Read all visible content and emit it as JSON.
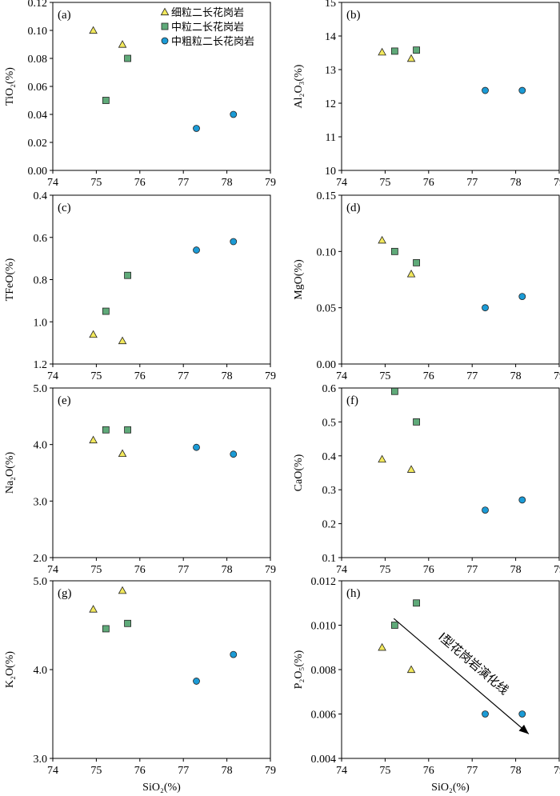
{
  "chart_data": {
    "type": "scatter",
    "xlabel": "SiO₂(%)",
    "xlim": [
      74,
      79
    ],
    "xticks": [
      "74",
      "75",
      "76",
      "77",
      "78",
      "79"
    ],
    "legend": {
      "placement": "top-right of panel (a)",
      "entries": [
        "细粒二长花岗岩",
        "中粒二长花岗岩",
        "中粗粒二长花岗岩"
      ]
    },
    "series_styles": [
      {
        "marker": "triangle",
        "color": "#f2e85c"
      },
      {
        "marker": "square",
        "color": "#5faa79"
      },
      {
        "marker": "circle",
        "color": "#1b9bd6"
      }
    ],
    "panels": [
      {
        "tag": "(a)",
        "ylabel": "TiO₂(%)",
        "ylim": [
          0,
          0.12
        ],
        "reversed": false,
        "yticks": [
          "0.00",
          "0.02",
          "0.04",
          "0.06",
          "0.08",
          "0.10",
          "0.12"
        ],
        "series": [
          {
            "x": [
              74.93,
              75.6
            ],
            "y": [
              0.1,
              0.09
            ]
          },
          {
            "x": [
              75.22,
              75.72
            ],
            "y": [
              0.05,
              0.08
            ]
          },
          {
            "x": [
              77.3,
              78.15
            ],
            "y": [
              0.03,
              0.04
            ]
          }
        ]
      },
      {
        "tag": "(b)",
        "ylabel": "Al₂O₃(%)",
        "ylim": [
          10,
          15
        ],
        "reversed": false,
        "yticks": [
          "10",
          "11",
          "12",
          "13",
          "14",
          "15"
        ],
        "series": [
          {
            "x": [
              74.93,
              75.6
            ],
            "y": [
              13.52,
              13.33
            ]
          },
          {
            "x": [
              75.22,
              75.72
            ],
            "y": [
              13.55,
              13.58
            ]
          },
          {
            "x": [
              77.3,
              78.15
            ],
            "y": [
              12.38,
              12.38
            ]
          }
        ]
      },
      {
        "tag": "(c)",
        "ylabel": "TFeO(%)",
        "ylim": [
          1.2,
          0.4
        ],
        "reversed": true,
        "yticks": [
          "0.4",
          "0.6",
          "0.8",
          "1.0",
          "1.2"
        ],
        "series": [
          {
            "x": [
              74.93,
              75.6
            ],
            "y": [
              1.06,
              1.09
            ]
          },
          {
            "x": [
              75.22,
              75.72
            ],
            "y": [
              0.95,
              0.78
            ]
          },
          {
            "x": [
              77.3,
              78.15
            ],
            "y": [
              0.66,
              0.62
            ]
          }
        ]
      },
      {
        "tag": "(d)",
        "ylabel": "MgO(%)",
        "ylim": [
          0,
          0.15
        ],
        "reversed": false,
        "yticks": [
          "0.00",
          "0.05",
          "0.10",
          "0.15"
        ],
        "series": [
          {
            "x": [
              74.93,
              75.6
            ],
            "y": [
              0.11,
              0.08
            ]
          },
          {
            "x": [
              75.22,
              75.72
            ],
            "y": [
              0.1,
              0.09
            ]
          },
          {
            "x": [
              77.3,
              78.15
            ],
            "y": [
              0.05,
              0.06
            ]
          }
        ]
      },
      {
        "tag": "(e)",
        "ylabel": "Na₂O(%)",
        "ylim": [
          2.0,
          5.0
        ],
        "reversed": false,
        "yticks": [
          "2.0",
          "3.0",
          "4.0",
          "5.0"
        ],
        "series": [
          {
            "x": [
              74.93,
              75.6
            ],
            "y": [
              4.08,
              3.84
            ]
          },
          {
            "x": [
              75.22,
              75.72
            ],
            "y": [
              4.26,
              4.26
            ]
          },
          {
            "x": [
              77.3,
              78.15
            ],
            "y": [
              3.95,
              3.83
            ]
          }
        ]
      },
      {
        "tag": "(f)",
        "ylabel": "CaO(%)",
        "ylim": [
          0.1,
          0.6
        ],
        "reversed": false,
        "yticks": [
          "0.1",
          "0.2",
          "0.3",
          "0.4",
          "0.5",
          "0.6"
        ],
        "series": [
          {
            "x": [
              74.93,
              75.6
            ],
            "y": [
              0.39,
              0.36
            ]
          },
          {
            "x": [
              75.22,
              75.72
            ],
            "y": [
              0.59,
              0.5
            ]
          },
          {
            "x": [
              77.3,
              78.15
            ],
            "y": [
              0.24,
              0.27
            ]
          }
        ]
      },
      {
        "tag": "(g)",
        "ylabel": "K₂O(%)",
        "ylim": [
          3.0,
          5.0
        ],
        "reversed": false,
        "yticks": [
          "3.0",
          "4.0",
          "5.0"
        ],
        "series": [
          {
            "x": [
              74.93,
              75.6
            ],
            "y": [
              4.68,
              4.89
            ]
          },
          {
            "x": [
              75.22,
              75.72
            ],
            "y": [
              4.46,
              4.52
            ]
          },
          {
            "x": [
              77.3,
              78.15
            ],
            "y": [
              3.87,
              4.17
            ]
          }
        ]
      },
      {
        "tag": "(h)",
        "ylabel": "P₂O₅(%)",
        "ylim": [
          0.004,
          0.012
        ],
        "reversed": false,
        "yticks": [
          "0.004",
          "0.006",
          "0.008",
          "0.010",
          "0.012"
        ],
        "series": [
          {
            "x": [
              74.93,
              75.6
            ],
            "y": [
              0.009,
              0.008
            ]
          },
          {
            "x": [
              75.22,
              75.72
            ],
            "y": [
              0.01,
              0.011
            ]
          },
          {
            "x": [
              77.3,
              78.15
            ],
            "y": [
              0.006,
              0.006
            ]
          }
        ],
        "annotation": {
          "text": "I型花岗岩演化线",
          "arrow_from": [
            75.2,
            0.0103
          ],
          "arrow_to": [
            78.3,
            0.0051
          ]
        }
      }
    ]
  }
}
